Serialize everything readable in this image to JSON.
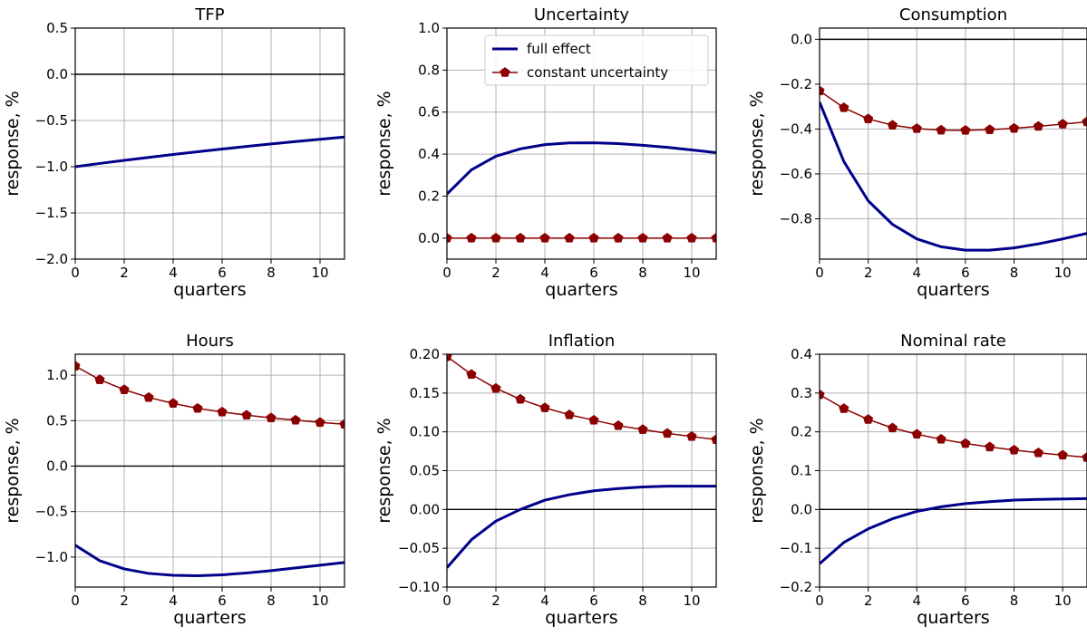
{
  "chart_data": [
    {
      "type": "line",
      "title": "TFP",
      "xlabel": "quarters",
      "ylabel": "response, %",
      "xlim": [
        0,
        11
      ],
      "ylim": [
        -2.0,
        0.5
      ],
      "x_ticks": [
        0,
        2,
        4,
        6,
        8,
        10
      ],
      "x_tick_labels": [
        "0",
        "2",
        "4",
        "6",
        "8",
        "10"
      ],
      "y_ticks": [
        -2.0,
        -1.5,
        -1.0,
        -0.5,
        0.0,
        0.5
      ],
      "y_tick_labels": [
        "−2.0",
        "−1.5",
        "−1.0",
        "−0.5",
        "0.0",
        "0.5"
      ],
      "grid": true,
      "zero_line": true,
      "x": [
        0,
        1,
        2,
        3,
        4,
        5,
        6,
        7,
        8,
        9,
        10,
        11
      ],
      "series": [
        {
          "key": "full",
          "values": [
            -1.0,
            -0.965,
            -0.931,
            -0.899,
            -0.868,
            -0.838,
            -0.809,
            -0.781,
            -0.754,
            -0.728,
            -0.703,
            -0.679
          ]
        }
      ]
    },
    {
      "type": "line",
      "title": "Uncertainty",
      "xlabel": "quarters",
      "ylabel": "response, %",
      "xlim": [
        0,
        11
      ],
      "ylim": [
        -0.1,
        1.0
      ],
      "x_ticks": [
        0,
        2,
        4,
        6,
        8,
        10
      ],
      "x_tick_labels": [
        "0",
        "2",
        "4",
        "6",
        "8",
        "10"
      ],
      "y_ticks": [
        0.0,
        0.2,
        0.4,
        0.6,
        0.8,
        1.0
      ],
      "y_tick_labels": [
        "0.0",
        "0.2",
        "0.4",
        "0.6",
        "0.8",
        "1.0"
      ],
      "grid": true,
      "zero_line": false,
      "legend": {
        "placement": "top-right",
        "entries": [
          "full effect",
          "constant uncertainty"
        ]
      },
      "x": [
        0,
        1,
        2,
        3,
        4,
        5,
        6,
        7,
        8,
        9,
        10,
        11
      ],
      "series": [
        {
          "key": "full",
          "name": "full effect",
          "values": [
            0.21,
            0.325,
            0.39,
            0.425,
            0.445,
            0.453,
            0.454,
            0.45,
            0.442,
            0.432,
            0.42,
            0.407
          ]
        },
        {
          "key": "const",
          "name": "constant uncertainty",
          "values": [
            0,
            0,
            0,
            0,
            0,
            0,
            0,
            0,
            0,
            0,
            0,
            0
          ]
        }
      ]
    },
    {
      "type": "line",
      "title": "Consumption",
      "xlabel": "quarters",
      "ylabel": "response, %",
      "xlim": [
        0,
        11
      ],
      "ylim": [
        -0.98,
        0.05
      ],
      "x_ticks": [
        0,
        2,
        4,
        6,
        8,
        10
      ],
      "x_tick_labels": [
        "0",
        "2",
        "4",
        "6",
        "8",
        "10"
      ],
      "y_ticks": [
        -0.8,
        -0.6,
        -0.4,
        -0.2,
        0.0
      ],
      "y_tick_labels": [
        "−0.8",
        "−0.6",
        "−0.4",
        "−0.2",
        "0.0"
      ],
      "grid": true,
      "zero_line": true,
      "x": [
        0,
        1,
        2,
        3,
        4,
        5,
        6,
        7,
        8,
        9,
        10,
        11
      ],
      "series": [
        {
          "key": "full",
          "values": [
            -0.28,
            -0.545,
            -0.72,
            -0.825,
            -0.89,
            -0.925,
            -0.94,
            -0.94,
            -0.93,
            -0.912,
            -0.89,
            -0.865
          ]
        },
        {
          "key": "const",
          "values": [
            -0.23,
            -0.305,
            -0.355,
            -0.383,
            -0.398,
            -0.405,
            -0.406,
            -0.403,
            -0.397,
            -0.388,
            -0.378,
            -0.368
          ]
        }
      ]
    },
    {
      "type": "line",
      "title": "Hours",
      "xlabel": "quarters",
      "ylabel": "response, %",
      "xlim": [
        0,
        11
      ],
      "ylim": [
        -1.33,
        1.23
      ],
      "x_ticks": [
        0,
        2,
        4,
        6,
        8,
        10
      ],
      "x_tick_labels": [
        "0",
        "2",
        "4",
        "6",
        "8",
        "10"
      ],
      "y_ticks": [
        -1.0,
        -0.5,
        0.0,
        0.5,
        1.0
      ],
      "y_tick_labels": [
        "−1.0",
        "−0.5",
        "0.0",
        "0.5",
        "1.0"
      ],
      "grid": true,
      "zero_line": true,
      "x": [
        0,
        1,
        2,
        3,
        4,
        5,
        6,
        7,
        8,
        9,
        10,
        11
      ],
      "series": [
        {
          "key": "full",
          "values": [
            -0.87,
            -1.04,
            -1.13,
            -1.18,
            -1.2,
            -1.205,
            -1.195,
            -1.175,
            -1.15,
            -1.12,
            -1.09,
            -1.06
          ]
        },
        {
          "key": "const",
          "values": [
            1.1,
            0.95,
            0.84,
            0.755,
            0.69,
            0.635,
            0.595,
            0.56,
            0.53,
            0.505,
            0.48,
            0.46
          ]
        }
      ]
    },
    {
      "type": "line",
      "title": "Inflation",
      "xlabel": "quarters",
      "ylabel": "response, %",
      "xlim": [
        0,
        11
      ],
      "ylim": [
        -0.1,
        0.2
      ],
      "x_ticks": [
        0,
        2,
        4,
        6,
        8,
        10
      ],
      "x_tick_labels": [
        "0",
        "2",
        "4",
        "6",
        "8",
        "10"
      ],
      "y_ticks": [
        -0.1,
        -0.05,
        0.0,
        0.05,
        0.1,
        0.15,
        0.2
      ],
      "y_tick_labels": [
        "−0.10",
        "−0.05",
        "0.00",
        "0.05",
        "0.10",
        "0.15",
        "0.20"
      ],
      "grid": true,
      "zero_line": true,
      "x": [
        0,
        1,
        2,
        3,
        4,
        5,
        6,
        7,
        8,
        9,
        10,
        11
      ],
      "series": [
        {
          "key": "full",
          "values": [
            -0.075,
            -0.039,
            -0.015,
            0.0,
            0.012,
            0.019,
            0.024,
            0.027,
            0.029,
            0.03,
            0.03,
            0.03
          ]
        },
        {
          "key": "const",
          "values": [
            0.197,
            0.174,
            0.156,
            0.142,
            0.131,
            0.122,
            0.115,
            0.108,
            0.103,
            0.098,
            0.094,
            0.09
          ]
        }
      ]
    },
    {
      "type": "line",
      "title": "Nominal rate",
      "xlabel": "quarters",
      "ylabel": "response, %",
      "xlim": [
        0,
        11
      ],
      "ylim": [
        -0.2,
        0.4
      ],
      "x_ticks": [
        0,
        2,
        4,
        6,
        8,
        10
      ],
      "x_tick_labels": [
        "0",
        "2",
        "4",
        "6",
        "8",
        "10"
      ],
      "y_ticks": [
        -0.2,
        -0.1,
        0.0,
        0.1,
        0.2,
        0.3,
        0.4
      ],
      "y_tick_labels": [
        "−0.2",
        "−0.1",
        "0.0",
        "0.1",
        "0.2",
        "0.3",
        "0.4"
      ],
      "grid": true,
      "zero_line": true,
      "x": [
        0,
        1,
        2,
        3,
        4,
        5,
        6,
        7,
        8,
        9,
        10,
        11
      ],
      "series": [
        {
          "key": "full",
          "values": [
            -0.14,
            -0.085,
            -0.05,
            -0.024,
            -0.005,
            0.007,
            0.015,
            0.02,
            0.024,
            0.026,
            0.027,
            0.028
          ]
        },
        {
          "key": "const",
          "values": [
            0.296,
            0.26,
            0.232,
            0.21,
            0.194,
            0.181,
            0.17,
            0.161,
            0.153,
            0.146,
            0.14,
            0.134
          ]
        }
      ]
    }
  ],
  "colors": {
    "full": "#00008b",
    "const": "#8b0000",
    "grid": "#b0b0b0",
    "axis": "#000000"
  }
}
